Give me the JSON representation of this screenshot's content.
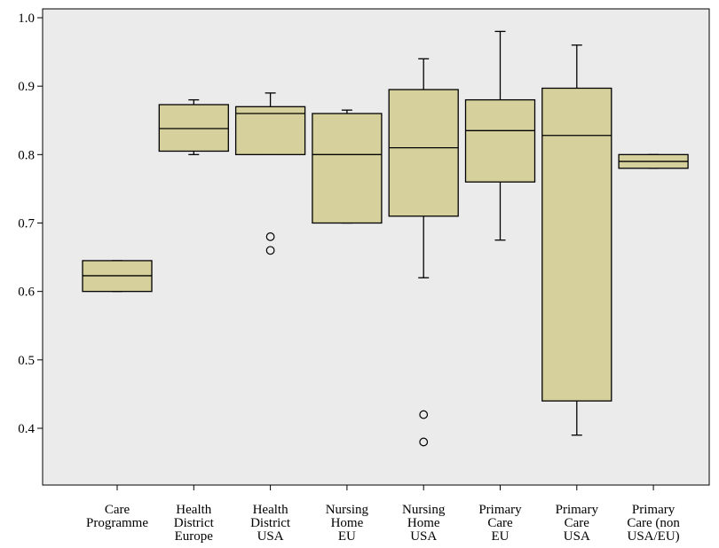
{
  "chart_data": {
    "type": "boxplot",
    "ylim": [
      0.33,
      1.01
    ],
    "yticks": [
      {
        "value": 0.4,
        "label": "0.4"
      },
      {
        "value": 0.5,
        "label": "0.5"
      },
      {
        "value": 0.6,
        "label": "0.6"
      },
      {
        "value": 0.7,
        "label": "0.7"
      },
      {
        "value": 0.8,
        "label": "0.8"
      },
      {
        "value": 0.9,
        "label": "0.9"
      },
      {
        "value": 1.0,
        "label": "1.0"
      }
    ],
    "grid": false,
    "colors": {
      "plot_bg": "#ebebeb",
      "box_fill": "#d6d19c",
      "stroke": "#000000"
    },
    "boxes": [
      {
        "id": "care-programme",
        "label_lines": [
          "Care",
          "Programme"
        ],
        "whisker_low": 0.6,
        "q1": 0.6,
        "median": 0.623,
        "q3": 0.645,
        "whisker_high": 0.645,
        "outliers": []
      },
      {
        "id": "health-district-europe",
        "label_lines": [
          "Health",
          "District",
          "Europe"
        ],
        "whisker_low": 0.8,
        "q1": 0.805,
        "median": 0.838,
        "q3": 0.873,
        "whisker_high": 0.88,
        "outliers": []
      },
      {
        "id": "health-district-usa",
        "label_lines": [
          "Health",
          "District",
          "USA"
        ],
        "whisker_low": 0.8,
        "q1": 0.8,
        "median": 0.86,
        "q3": 0.87,
        "whisker_high": 0.89,
        "outliers": [
          0.68,
          0.66
        ]
      },
      {
        "id": "nursing-home-eu",
        "label_lines": [
          "Nursing",
          "Home",
          "EU"
        ],
        "whisker_low": 0.7,
        "q1": 0.7,
        "median": 0.8,
        "q3": 0.86,
        "whisker_high": 0.865,
        "outliers": []
      },
      {
        "id": "nursing-home-usa",
        "label_lines": [
          "Nursing",
          "Home",
          "USA"
        ],
        "whisker_low": 0.62,
        "q1": 0.71,
        "median": 0.81,
        "q3": 0.895,
        "whisker_high": 0.94,
        "outliers": [
          0.42,
          0.38
        ]
      },
      {
        "id": "primary-care-eu",
        "label_lines": [
          "Primary",
          "Care",
          "EU"
        ],
        "whisker_low": 0.675,
        "q1": 0.76,
        "median": 0.835,
        "q3": 0.88,
        "whisker_high": 0.98,
        "outliers": []
      },
      {
        "id": "primary-care-usa",
        "label_lines": [
          "Primary",
          "Care",
          "USA"
        ],
        "whisker_low": 0.39,
        "q1": 0.44,
        "median": 0.828,
        "q3": 0.897,
        "whisker_high": 0.96,
        "outliers": []
      },
      {
        "id": "primary-care-non-usa-eu",
        "label_lines": [
          "Primary",
          "Care (non",
          "USA/EU)"
        ],
        "whisker_low": 0.78,
        "q1": 0.78,
        "median": 0.79,
        "q3": 0.8,
        "whisker_high": 0.8,
        "outliers": []
      }
    ]
  }
}
